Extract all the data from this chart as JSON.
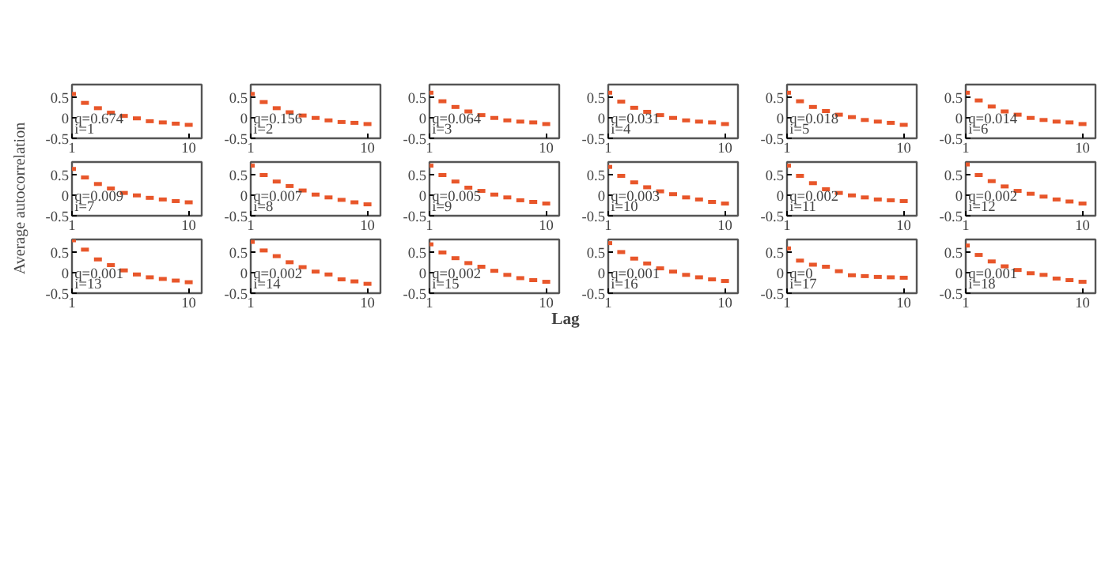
{
  "chart_data": [
    {
      "type": "scatter",
      "x": [
        1,
        2,
        3,
        4,
        5,
        6,
        7,
        8,
        9,
        10
      ],
      "values": [
        0.59,
        0.37,
        0.24,
        0.13,
        0.05,
        -0.01,
        -0.08,
        -0.11,
        -0.14,
        -0.17
      ],
      "color": "#e8562a",
      "annotations": [
        "q=0.674",
        "i=1"
      ],
      "xlim": [
        1,
        11
      ],
      "ylim": [
        -0.5,
        0.82
      ],
      "xticks": [
        1,
        10
      ],
      "yticks": [
        -0.5,
        0,
        0.5
      ]
    },
    {
      "type": "scatter",
      "x": [
        1,
        2,
        3,
        4,
        5,
        6,
        7,
        8,
        9,
        10
      ],
      "values": [
        0.59,
        0.39,
        0.24,
        0.14,
        0.06,
        0.0,
        -0.06,
        -0.1,
        -0.12,
        -0.15
      ],
      "color": "#e8562a",
      "annotations": [
        "q=0.156",
        "i=2"
      ],
      "xlim": [
        1,
        11
      ],
      "ylim": [
        -0.5,
        0.82
      ],
      "xticks": [
        1,
        10
      ],
      "yticks": [
        -0.5,
        0,
        0.5
      ]
    },
    {
      "type": "scatter",
      "x": [
        1,
        2,
        3,
        4,
        5,
        6,
        7,
        8,
        9,
        10
      ],
      "values": [
        0.62,
        0.41,
        0.27,
        0.16,
        0.07,
        0.0,
        -0.06,
        -0.09,
        -0.11,
        -0.15
      ],
      "color": "#e8562a",
      "annotations": [
        "q=0.064",
        "i=3"
      ],
      "xlim": [
        1,
        11
      ],
      "ylim": [
        -0.5,
        0.82
      ],
      "xticks": [
        1,
        10
      ],
      "yticks": [
        -0.5,
        0,
        0.5
      ]
    },
    {
      "type": "scatter",
      "x": [
        1,
        2,
        3,
        4,
        5,
        6,
        7,
        8,
        9,
        10
      ],
      "values": [
        0.62,
        0.4,
        0.25,
        0.15,
        0.07,
        0.0,
        -0.06,
        -0.09,
        -0.11,
        -0.15
      ],
      "color": "#e8562a",
      "annotations": [
        "q=0.031",
        "i=4"
      ],
      "xlim": [
        1,
        11
      ],
      "ylim": [
        -0.5,
        0.82
      ],
      "xticks": [
        1,
        10
      ],
      "yticks": [
        -0.5,
        0,
        0.5
      ]
    },
    {
      "type": "scatter",
      "x": [
        1,
        2,
        3,
        4,
        5,
        6,
        7,
        8,
        9,
        10
      ],
      "values": [
        0.62,
        0.41,
        0.27,
        0.17,
        0.08,
        0.02,
        -0.05,
        -0.09,
        -0.12,
        -0.17
      ],
      "color": "#e8562a",
      "annotations": [
        "q=0.018",
        "i=5"
      ],
      "xlim": [
        1,
        11
      ],
      "ylim": [
        -0.5,
        0.82
      ],
      "xticks": [
        1,
        10
      ],
      "yticks": [
        -0.5,
        0,
        0.5
      ]
    },
    {
      "type": "scatter",
      "x": [
        1,
        2,
        3,
        4,
        5,
        6,
        7,
        8,
        9,
        10
      ],
      "values": [
        0.62,
        0.43,
        0.28,
        0.16,
        0.08,
        0.0,
        -0.05,
        -0.09,
        -0.11,
        -0.15
      ],
      "color": "#e8562a",
      "annotations": [
        "q=0.014",
        "i=6"
      ],
      "xlim": [
        1,
        11
      ],
      "ylim": [
        -0.5,
        0.82
      ],
      "xticks": [
        1,
        10
      ],
      "yticks": [
        -0.5,
        0,
        0.5
      ]
    },
    {
      "type": "scatter",
      "x": [
        1,
        2,
        3,
        4,
        5,
        6,
        7,
        8,
        9,
        10
      ],
      "values": [
        0.65,
        0.44,
        0.28,
        0.17,
        0.06,
        0.0,
        -0.06,
        -0.1,
        -0.14,
        -0.17
      ],
      "color": "#e8562a",
      "annotations": [
        "q=0.009",
        "i=7"
      ],
      "ylabel": "Average autocorrelation",
      "xlim": [
        1,
        11
      ],
      "ylim": [
        -0.5,
        0.82
      ],
      "xticks": [
        1,
        10
      ],
      "yticks": [
        -0.5,
        0,
        0.5
      ]
    },
    {
      "type": "scatter",
      "x": [
        1,
        2,
        3,
        4,
        5,
        6,
        7,
        8,
        9,
        10
      ],
      "values": [
        0.73,
        0.5,
        0.34,
        0.23,
        0.12,
        0.02,
        -0.05,
        -0.11,
        -0.17,
        -0.22
      ],
      "color": "#e8562a",
      "annotations": [
        "q=0.007",
        "i=8"
      ],
      "xlim": [
        1,
        11
      ],
      "ylim": [
        -0.5,
        0.82
      ],
      "xticks": [
        1,
        10
      ],
      "yticks": [
        -0.5,
        0,
        0.5
      ]
    },
    {
      "type": "scatter",
      "x": [
        1,
        2,
        3,
        4,
        5,
        6,
        7,
        8,
        9,
        10
      ],
      "values": [
        0.73,
        0.5,
        0.34,
        0.19,
        0.11,
        0.02,
        -0.05,
        -0.12,
        -0.16,
        -0.2
      ],
      "color": "#e8562a",
      "annotations": [
        "q=0.005",
        "i=9"
      ],
      "xlim": [
        1,
        11
      ],
      "ylim": [
        -0.5,
        0.82
      ],
      "xticks": [
        1,
        10
      ],
      "yticks": [
        -0.5,
        0,
        0.5
      ]
    },
    {
      "type": "scatter",
      "x": [
        1,
        2,
        3,
        4,
        5,
        6,
        7,
        8,
        9,
        10
      ],
      "values": [
        0.7,
        0.48,
        0.32,
        0.2,
        0.1,
        0.03,
        -0.05,
        -0.1,
        -0.16,
        -0.2
      ],
      "color": "#e8562a",
      "annotations": [
        "q=0.003",
        "i=10"
      ],
      "xlim": [
        1,
        11
      ],
      "ylim": [
        -0.5,
        0.82
      ],
      "xticks": [
        1,
        10
      ],
      "yticks": [
        -0.5,
        0,
        0.5
      ]
    },
    {
      "type": "scatter",
      "x": [
        1,
        2,
        3,
        4,
        5,
        6,
        7,
        8,
        9,
        10
      ],
      "values": [
        0.73,
        0.48,
        0.3,
        0.15,
        0.06,
        0.0,
        -0.05,
        -0.1,
        -0.12,
        -0.14
      ],
      "color": "#e8562a",
      "annotations": [
        "q=0.002",
        "i=11"
      ],
      "xlim": [
        1,
        11
      ],
      "ylim": [
        -0.5,
        0.82
      ],
      "xticks": [
        1,
        10
      ],
      "yticks": [
        -0.5,
        0,
        0.5
      ]
    },
    {
      "type": "scatter",
      "x": [
        1,
        2,
        3,
        4,
        5,
        6,
        7,
        8,
        9,
        10
      ],
      "values": [
        0.76,
        0.5,
        0.35,
        0.22,
        0.11,
        0.04,
        -0.03,
        -0.1,
        -0.15,
        -0.2
      ],
      "color": "#e8562a",
      "annotations": [
        "q=0.002",
        "i=12"
      ],
      "xlim": [
        1,
        11
      ],
      "ylim": [
        -0.5,
        0.82
      ],
      "xticks": [
        1,
        10
      ],
      "yticks": [
        -0.5,
        0,
        0.5
      ]
    },
    {
      "type": "scatter",
      "x": [
        1,
        2,
        3,
        4,
        5,
        6,
        7,
        8,
        9,
        10
      ],
      "values": [
        0.8,
        0.57,
        0.33,
        0.19,
        0.06,
        -0.04,
        -0.11,
        -0.15,
        -0.19,
        -0.23
      ],
      "color": "#e8562a",
      "annotations": [
        "q=0.001",
        "i=13"
      ],
      "xlim": [
        1,
        11
      ],
      "ylim": [
        -0.5,
        0.82
      ],
      "xticks": [
        1,
        10
      ],
      "yticks": [
        -0.5,
        0,
        0.5
      ]
    },
    {
      "type": "scatter",
      "x": [
        1,
        2,
        3,
        4,
        5,
        6,
        7,
        8,
        9,
        10
      ],
      "values": [
        0.76,
        0.55,
        0.41,
        0.26,
        0.14,
        0.03,
        -0.04,
        -0.16,
        -0.21,
        -0.27
      ],
      "color": "#e8562a",
      "annotations": [
        "q=0.002",
        "i=14"
      ],
      "xlim": [
        1,
        11
      ],
      "ylim": [
        -0.5,
        0.82
      ],
      "xticks": [
        1,
        10
      ],
      "yticks": [
        -0.5,
        0,
        0.5
      ]
    },
    {
      "type": "scatter",
      "x": [
        1,
        2,
        3,
        4,
        5,
        6,
        7,
        8,
        9,
        10
      ],
      "values": [
        0.7,
        0.5,
        0.36,
        0.24,
        0.15,
        0.05,
        -0.05,
        -0.13,
        -0.18,
        -0.22
      ],
      "color": "#e8562a",
      "annotations": [
        "q=0.002",
        "i=15"
      ],
      "xlabel": "Lag",
      "xlim": [
        1,
        11
      ],
      "ylim": [
        -0.5,
        0.82
      ],
      "xticks": [
        1,
        10
      ],
      "yticks": [
        -0.5,
        0,
        0.5
      ]
    },
    {
      "type": "scatter",
      "x": [
        1,
        2,
        3,
        4,
        5,
        6,
        7,
        8,
        9,
        10
      ],
      "values": [
        0.73,
        0.51,
        0.35,
        0.23,
        0.11,
        0.03,
        -0.05,
        -0.11,
        -0.16,
        -0.2
      ],
      "color": "#e8562a",
      "annotations": [
        "q=0.001",
        "i=16"
      ],
      "xlim": [
        1,
        11
      ],
      "ylim": [
        -0.5,
        0.82
      ],
      "xticks": [
        1,
        10
      ],
      "yticks": [
        -0.5,
        0,
        0.5
      ]
    },
    {
      "type": "scatter",
      "x": [
        1,
        2,
        3,
        4,
        5,
        6,
        7,
        8,
        9,
        10
      ],
      "values": [
        0.6,
        0.3,
        0.2,
        0.15,
        0.04,
        -0.06,
        -0.08,
        -0.1,
        -0.11,
        -0.12
      ],
      "color": "#e8562a",
      "annotations": [
        "q=0",
        "i=17"
      ],
      "xlim": [
        1,
        11
      ],
      "ylim": [
        -0.5,
        0.82
      ],
      "xticks": [
        1,
        10
      ],
      "yticks": [
        -0.5,
        0,
        0.5
      ]
    },
    {
      "type": "scatter",
      "x": [
        1,
        2,
        3,
        4,
        5,
        6,
        7,
        8,
        9,
        10
      ],
      "values": [
        0.67,
        0.44,
        0.28,
        0.16,
        0.07,
        -0.01,
        -0.05,
        -0.14,
        -0.18,
        -0.22
      ],
      "color": "#e8562a",
      "annotations": [
        "q=0.001",
        "i=18"
      ],
      "xlim": [
        1,
        11
      ],
      "ylim": [
        -0.5,
        0.82
      ],
      "xticks": [
        1,
        10
      ],
      "yticks": [
        -0.5,
        0,
        0.5
      ]
    }
  ]
}
